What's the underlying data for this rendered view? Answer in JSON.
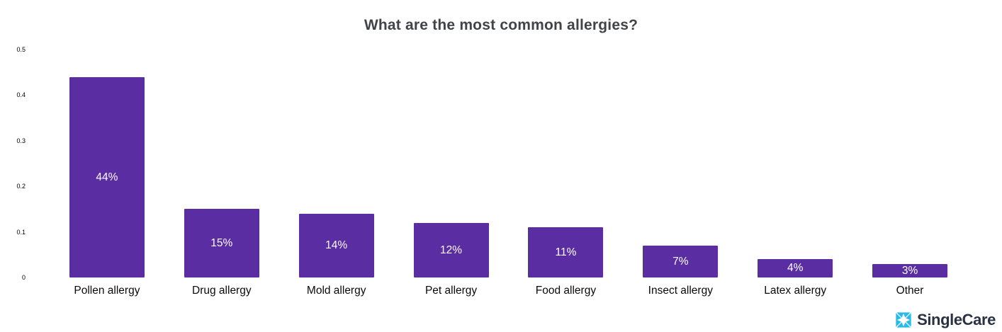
{
  "title": "What are the most common allergies?",
  "brand": {
    "name": "SingleCare",
    "icon": "singlecare-diamond-icon",
    "icon_color": "#25BCEB",
    "text_color": "#2A3142"
  },
  "colors": {
    "bar": "#5A2DA3",
    "bar_label": "#FFFFFF",
    "title": "#424349",
    "axis_text": "#000000",
    "background": "#FFFFFF"
  },
  "chart_data": {
    "type": "bar",
    "title": "What are the most common allergies?",
    "categories": [
      "Pollen allergy",
      "Drug allergy",
      "Mold allergy",
      "Pet allergy",
      "Food allergy",
      "Insect allergy",
      "Latex allergy",
      "Other"
    ],
    "values": [
      0.44,
      0.15,
      0.14,
      0.12,
      0.11,
      0.07,
      0.04,
      0.03
    ],
    "bar_labels": [
      "44%",
      "15%",
      "14%",
      "12%",
      "11%",
      "7%",
      "4%",
      "3%"
    ],
    "xlabel": "",
    "ylabel": "",
    "ylim": [
      0,
      0.5
    ],
    "yticks": [
      0,
      0.1,
      0.2,
      0.3,
      0.4,
      0.5
    ],
    "ytick_labels": [
      "0",
      "0.1",
      "0.2",
      "0.3",
      "0.4",
      "0.5"
    ],
    "grid": false,
    "legend": false,
    "bar_color": "#5A2DA3",
    "value_label_position": "inside-center"
  }
}
